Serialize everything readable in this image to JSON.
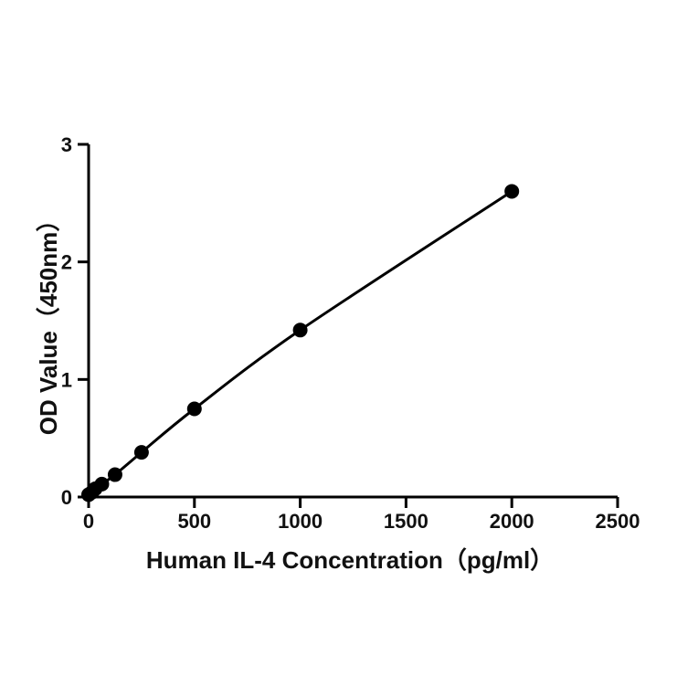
{
  "chart_data": {
    "type": "scatter",
    "title": "",
    "xlabel": "Human IL-4  Concentration（pg/ml）",
    "ylabel": "OD Value（450nm）",
    "xlim": [
      0,
      2500
    ],
    "ylim": [
      0,
      3
    ],
    "xticks": [
      0,
      500,
      1000,
      1500,
      2000,
      2500
    ],
    "yticks": [
      0,
      1,
      2,
      3
    ],
    "grid": false,
    "legend": "none",
    "fit_line": true,
    "series": [
      {
        "x": [
          0,
          15.6,
          31.25,
          62.5,
          125,
          250,
          500,
          1000,
          2000
        ],
        "y": [
          0.02,
          0.04,
          0.07,
          0.11,
          0.19,
          0.38,
          0.75,
          1.42,
          2.6
        ]
      }
    ]
  }
}
